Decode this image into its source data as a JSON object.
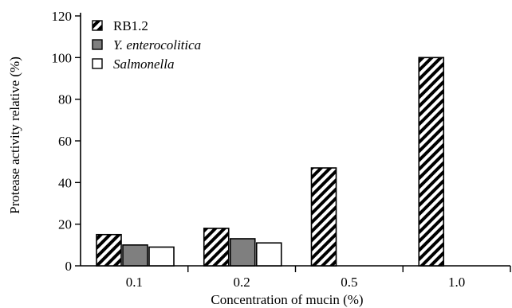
{
  "chart_data": {
    "type": "bar",
    "title": "",
    "xlabel": "Concentration of mucin (%)",
    "ylabel": "Protease activity relative (%)",
    "categories": [
      "0.1",
      "0.2",
      "0.5",
      "1.0"
    ],
    "ylim": [
      0,
      120
    ],
    "yticks": [
      "0",
      "20",
      "40",
      "60",
      "80",
      "100",
      "120"
    ],
    "grid": false,
    "legend_position": "top-left",
    "series": [
      {
        "name": "RB1.2",
        "values": [
          15,
          18,
          47,
          100
        ],
        "fill": "hatch",
        "color": "#000000"
      },
      {
        "name": "Y. enterocolitica",
        "values": [
          10,
          13,
          null,
          null
        ],
        "fill": "solid",
        "color": "#7f7f7f"
      },
      {
        "name": "Salmonella",
        "values": [
          9,
          11,
          null,
          null
        ],
        "fill": "solid",
        "color": "#ffffff"
      }
    ]
  }
}
